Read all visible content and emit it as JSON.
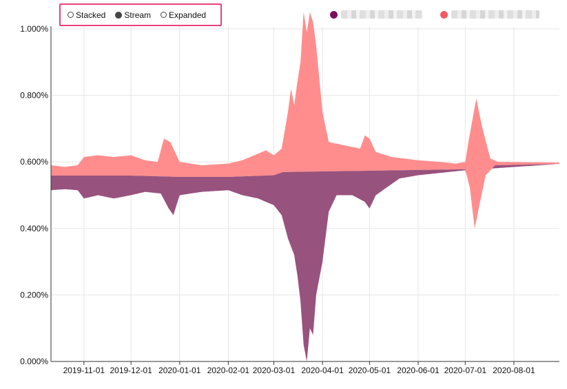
{
  "controls": {
    "options": [
      {
        "label": "Stacked",
        "checked": false
      },
      {
        "label": "Stream",
        "checked": true
      },
      {
        "label": "Expanded",
        "checked": false
      }
    ]
  },
  "colors": {
    "series_a": "#7a0f5c",
    "series_b": "#ff6b6b",
    "fill_a": "#98527e",
    "fill_b": "#ff8d8d",
    "control_border": "#e8417a"
  },
  "chart_data": {
    "type": "area",
    "mode": "stream",
    "x_start": "2019-10-11",
    "x_end": "2020-08-30",
    "x_ticks": [
      "2019-11-01",
      "2019-12-01",
      "2020-01-01",
      "2020-02-01",
      "2020-03-01",
      "2020-04-01",
      "2020-05-01",
      "2020-06-01",
      "2020-07-01",
      "2020-08-01"
    ],
    "y_ticks": [
      "0.000%",
      "0.200%",
      "0.400%",
      "0.600%",
      "0.800%",
      "1.000%"
    ],
    "ylim": [
      0,
      1.0
    ],
    "baseline_key_dates": [
      [
        "2019-10-11",
        0.559
      ],
      [
        "2019-12-01",
        0.559
      ],
      [
        "2020-01-01",
        0.555
      ],
      [
        "2020-02-01",
        0.555
      ],
      [
        "2020-03-01",
        0.56
      ],
      [
        "2020-03-10",
        0.575
      ],
      [
        "2020-03-20",
        0.62
      ],
      [
        "2020-04-01",
        0.58
      ],
      [
        "2020-05-01",
        0.588
      ],
      [
        "2020-06-01",
        0.585
      ],
      [
        "2020-07-01",
        0.578
      ],
      [
        "2020-07-10",
        0.595
      ],
      [
        "2020-08-30",
        0.594
      ]
    ],
    "series": [
      {
        "name": "",
        "color": "#98527e",
        "lower_key_dates": [
          [
            "2019-10-11",
            0.515
          ],
          [
            "2019-10-20",
            0.518
          ],
          [
            "2019-10-28",
            0.515
          ],
          [
            "2019-11-01",
            0.49
          ],
          [
            "2019-11-10",
            0.5
          ],
          [
            "2019-11-20",
            0.49
          ],
          [
            "2019-12-01",
            0.5
          ],
          [
            "2019-12-10",
            0.51
          ],
          [
            "2019-12-20",
            0.505
          ],
          [
            "2019-12-25",
            0.46
          ],
          [
            "2019-12-28",
            0.44
          ],
          [
            "2020-01-01",
            0.5
          ],
          [
            "2020-01-15",
            0.51
          ],
          [
            "2020-02-01",
            0.515
          ],
          [
            "2020-02-10",
            0.5
          ],
          [
            "2020-02-20",
            0.49
          ],
          [
            "2020-03-01",
            0.47
          ],
          [
            "2020-03-06",
            0.44
          ],
          [
            "2020-03-10",
            0.37
          ],
          [
            "2020-03-14",
            0.32
          ],
          [
            "2020-03-16",
            0.26
          ],
          [
            "2020-03-18",
            0.18
          ],
          [
            "2020-03-20",
            0.05
          ],
          [
            "2020-03-22",
            0.0
          ],
          [
            "2020-03-24",
            0.1
          ],
          [
            "2020-03-26",
            0.08
          ],
          [
            "2020-03-28",
            0.2
          ],
          [
            "2020-04-01",
            0.3
          ],
          [
            "2020-04-05",
            0.45
          ],
          [
            "2020-04-10",
            0.5
          ],
          [
            "2020-04-20",
            0.5
          ],
          [
            "2020-04-28",
            0.48
          ],
          [
            "2020-05-01",
            0.46
          ],
          [
            "2020-05-05",
            0.5
          ],
          [
            "2020-05-20",
            0.55
          ],
          [
            "2020-06-01",
            0.56
          ],
          [
            "2020-07-01",
            0.575
          ],
          [
            "2020-08-30",
            0.594
          ]
        ]
      },
      {
        "name": "",
        "color": "#ff8d8d",
        "upper_key_dates": [
          [
            "2019-10-11",
            0.59
          ],
          [
            "2019-10-20",
            0.585
          ],
          [
            "2019-10-28",
            0.59
          ],
          [
            "2019-11-01",
            0.615
          ],
          [
            "2019-11-10",
            0.62
          ],
          [
            "2019-11-20",
            0.615
          ],
          [
            "2019-12-01",
            0.62
          ],
          [
            "2019-12-10",
            0.605
          ],
          [
            "2019-12-18",
            0.6
          ],
          [
            "2019-12-22",
            0.67
          ],
          [
            "2019-12-26",
            0.66
          ],
          [
            "2020-01-01",
            0.6
          ],
          [
            "2020-01-15",
            0.59
          ],
          [
            "2020-02-01",
            0.595
          ],
          [
            "2020-02-10",
            0.605
          ],
          [
            "2020-02-20",
            0.625
          ],
          [
            "2020-02-25",
            0.635
          ],
          [
            "2020-03-01",
            0.62
          ],
          [
            "2020-03-06",
            0.64
          ],
          [
            "2020-03-10",
            0.75
          ],
          [
            "2020-03-12",
            0.82
          ],
          [
            "2020-03-14",
            0.77
          ],
          [
            "2020-03-16",
            0.84
          ],
          [
            "2020-03-18",
            0.9
          ],
          [
            "2020-03-20",
            1.05
          ],
          [
            "2020-03-22",
            0.99
          ],
          [
            "2020-03-24",
            1.05
          ],
          [
            "2020-03-26",
            1.02
          ],
          [
            "2020-03-28",
            0.95
          ],
          [
            "2020-04-01",
            0.75
          ],
          [
            "2020-04-05",
            0.66
          ],
          [
            "2020-04-15",
            0.65
          ],
          [
            "2020-04-25",
            0.64
          ],
          [
            "2020-04-28",
            0.68
          ],
          [
            "2020-05-01",
            0.67
          ],
          [
            "2020-05-05",
            0.63
          ],
          [
            "2020-05-15",
            0.615
          ],
          [
            "2020-06-01",
            0.605
          ],
          [
            "2020-06-15",
            0.6
          ],
          [
            "2020-06-25",
            0.595
          ],
          [
            "2020-07-01",
            0.6
          ],
          [
            "2020-07-03",
            0.66
          ],
          [
            "2020-07-08",
            0.79
          ],
          [
            "2020-07-12",
            0.7
          ],
          [
            "2020-07-17",
            0.61
          ],
          [
            "2020-07-22",
            0.6
          ],
          [
            "2020-08-30",
            0.598
          ]
        ],
        "lower_key_dates": [
          [
            "2019-10-11",
            0.559
          ],
          [
            "2020-07-01",
            0.578
          ],
          [
            "2020-07-04",
            0.52
          ],
          [
            "2020-07-07",
            0.4
          ],
          [
            "2020-07-10",
            0.47
          ],
          [
            "2020-07-14",
            0.56
          ],
          [
            "2020-07-20",
            0.59
          ],
          [
            "2020-08-30",
            0.594
          ]
        ]
      }
    ]
  }
}
